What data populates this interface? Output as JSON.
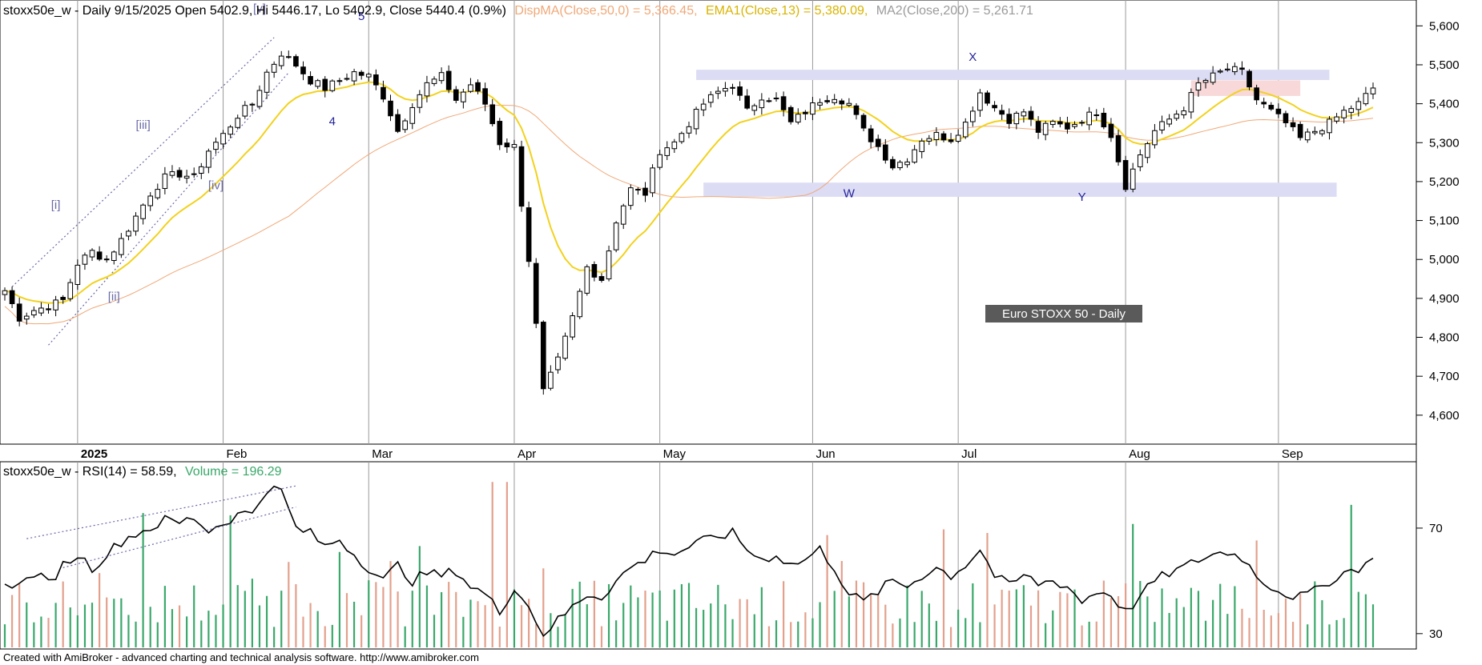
{
  "price_panel": {
    "header": {
      "prefix": "stoxx50e_w - Daily 9/15/2025 Open 5402.9, Hi 5446.17, Lo 5402.9, Close 5440.4 (0.9%)",
      "dispma": "DispMA(Close,50,0) = 5,366.45,",
      "ema": "EMA1(Close,13) = 5,380.09,",
      "ma2": "MA2(Close,200) = 5,261.71"
    },
    "watermark": "Euro STOXX 50 - Daily",
    "footer": "Created with AmiBroker - advanced charting and technical analysis software. http://www.amibroker.com"
  },
  "rsi_panel": {
    "header": {
      "rsi": "stoxx50e_w - RSI(14) = 58.59,",
      "volume": "Volume = 196.29"
    }
  },
  "colors": {
    "ema": "#f2d21e",
    "dispma": "#f0a878",
    "ma2": "#ababab",
    "band": "#dcdcf4",
    "rect": "#f8d8d8",
    "wave": "#23239c",
    "wave_light": "#6a6aa8",
    "vol_up": "#3aa86a",
    "vol_down": "#e3a08c",
    "label_bg": "#5a5a5a"
  },
  "chart_data": [
    {
      "type": "candlestick",
      "title": "Euro STOXX 50 - Daily",
      "ylim": [
        4540,
        5650
      ],
      "yticks": [
        "5,600",
        "5,500",
        "5,400",
        "5,300",
        "5,200",
        "5,100",
        "5,000",
        "4,900",
        "4,800",
        "4,700",
        "4,600"
      ],
      "ytick_values": [
        5600,
        5500,
        5400,
        5300,
        5200,
        5100,
        5000,
        4900,
        4800,
        4700,
        4600
      ],
      "x_labels": [
        {
          "label": "2025",
          "index": 10
        },
        {
          "label": "Feb",
          "index": 30
        },
        {
          "label": "Mar",
          "index": 50
        },
        {
          "label": "Apr",
          "index": 70
        },
        {
          "label": "May",
          "index": 90
        },
        {
          "label": "Jun",
          "index": 111
        },
        {
          "label": "Jul",
          "index": 131
        },
        {
          "label": "Aug",
          "index": 154
        },
        {
          "label": "Sep",
          "index": 175
        }
      ],
      "last_close": 5440.4,
      "anchors": [
        [
          0,
          4920
        ],
        [
          2,
          4850
        ],
        [
          4,
          4870
        ],
        [
          6,
          4880
        ],
        [
          8,
          4895
        ],
        [
          10,
          4990
        ],
        [
          12,
          5020
        ],
        [
          14,
          5000
        ],
        [
          16,
          5050
        ],
        [
          18,
          5110
        ],
        [
          20,
          5170
        ],
        [
          22,
          5210
        ],
        [
          24,
          5220
        ],
        [
          26,
          5210
        ],
        [
          28,
          5280
        ],
        [
          30,
          5320
        ],
        [
          32,
          5370
        ],
        [
          34,
          5400
        ],
        [
          36,
          5480
        ],
        [
          38,
          5530
        ],
        [
          40,
          5500
        ],
        [
          42,
          5460
        ],
        [
          44,
          5440
        ],
        [
          46,
          5460
        ],
        [
          48,
          5480
        ],
        [
          50,
          5470
        ],
        [
          52,
          5420
        ],
        [
          54,
          5330
        ],
        [
          56,
          5400
        ],
        [
          58,
          5450
        ],
        [
          60,
          5470
        ],
        [
          62,
          5410
        ],
        [
          64,
          5450
        ],
        [
          66,
          5400
        ],
        [
          68,
          5300
        ],
        [
          70,
          5290
        ],
        [
          72,
          5000
        ],
        [
          74,
          4660
        ],
        [
          76,
          4740
        ],
        [
          78,
          4850
        ],
        [
          80,
          4980
        ],
        [
          82,
          4950
        ],
        [
          84,
          5100
        ],
        [
          86,
          5180
        ],
        [
          88,
          5170
        ],
        [
          90,
          5280
        ],
        [
          92,
          5300
        ],
        [
          94,
          5350
        ],
        [
          96,
          5400
        ],
        [
          98,
          5430
        ],
        [
          100,
          5450
        ],
        [
          102,
          5380
        ],
        [
          104,
          5420
        ],
        [
          106,
          5410
        ],
        [
          108,
          5350
        ],
        [
          110,
          5380
        ],
        [
          112,
          5410
        ],
        [
          114,
          5420
        ],
        [
          116,
          5400
        ],
        [
          118,
          5330
        ],
        [
          120,
          5290
        ],
        [
          122,
          5240
        ],
        [
          124,
          5260
        ],
        [
          126,
          5310
        ],
        [
          128,
          5320
        ],
        [
          130,
          5310
        ],
        [
          132,
          5350
        ],
        [
          134,
          5430
        ],
        [
          136,
          5390
        ],
        [
          138,
          5360
        ],
        [
          140,
          5380
        ],
        [
          142,
          5330
        ],
        [
          144,
          5350
        ],
        [
          146,
          5340
        ],
        [
          148,
          5360
        ],
        [
          150,
          5380
        ],
        [
          152,
          5320
        ],
        [
          154,
          5190
        ],
        [
          156,
          5270
        ],
        [
          158,
          5330
        ],
        [
          160,
          5360
        ],
        [
          162,
          5390
        ],
        [
          164,
          5450
        ],
        [
          166,
          5470
        ],
        [
          168,
          5490
        ],
        [
          170,
          5480
        ],
        [
          172,
          5410
        ],
        [
          174,
          5380
        ],
        [
          176,
          5350
        ],
        [
          178,
          5310
        ],
        [
          180,
          5330
        ],
        [
          182,
          5350
        ],
        [
          184,
          5380
        ],
        [
          186,
          5400
        ],
        [
          188,
          5440.4
        ]
      ],
      "moving_averages": {
        "EMA1(Close,13)": "ema",
        "DispMA(Close,50,0)": "dispma",
        "MA2(Close,200)": "ma2"
      },
      "wave_labels": [
        {
          "label": "[i]",
          "index": 7,
          "value": 5130
        },
        {
          "label": "[ii]",
          "index": 15,
          "value": 4895
        },
        {
          "label": "[iii]",
          "index": 19,
          "value": 5335
        },
        {
          "label": "[iv]",
          "index": 29,
          "value": 5180
        },
        {
          "label": "[v]",
          "index": 35,
          "value": 5635
        },
        {
          "label": "4",
          "index": 45,
          "value": 5345
        },
        {
          "label": "5",
          "index": 49,
          "value": 5615
        },
        {
          "label": "W",
          "index": 116,
          "value": 5160
        },
        {
          "label": "X",
          "index": 133,
          "value": 5510
        },
        {
          "label": "Y",
          "index": 148,
          "value": 5150
        }
      ],
      "bands": [
        {
          "from": 95,
          "to": 182,
          "low": 5465,
          "high": 5475
        },
        {
          "from": 96,
          "to": 183,
          "low": 5165,
          "high": 5185
        }
      ],
      "zone": {
        "from": 163,
        "to": 178,
        "low": 5420,
        "high": 5460
      }
    },
    {
      "type": "line",
      "title": "RSI(14)",
      "series_name": "RSI(14)",
      "last_value": 58.59,
      "ylim": [
        26,
        90
      ],
      "yticks": [
        "70",
        "30"
      ],
      "ytick_values": [
        70,
        30
      ],
      "anchors": [
        [
          0,
          50
        ],
        [
          2,
          48
        ],
        [
          4,
          53
        ],
        [
          6,
          49
        ],
        [
          8,
          56
        ],
        [
          10,
          60
        ],
        [
          12,
          55
        ],
        [
          14,
          60
        ],
        [
          16,
          65
        ],
        [
          18,
          68
        ],
        [
          20,
          70
        ],
        [
          22,
          73
        ],
        [
          24,
          72
        ],
        [
          26,
          74
        ],
        [
          28,
          69
        ],
        [
          30,
          72
        ],
        [
          32,
          75
        ],
        [
          34,
          76
        ],
        [
          36,
          85
        ],
        [
          38,
          84
        ],
        [
          40,
          70
        ],
        [
          42,
          68
        ],
        [
          44,
          63
        ],
        [
          46,
          66
        ],
        [
          48,
          60
        ],
        [
          50,
          55
        ],
        [
          52,
          50
        ],
        [
          54,
          56
        ],
        [
          56,
          50
        ],
        [
          58,
          53
        ],
        [
          60,
          52
        ],
        [
          62,
          54
        ],
        [
          64,
          48
        ],
        [
          66,
          45
        ],
        [
          68,
          38
        ],
        [
          70,
          48
        ],
        [
          72,
          40
        ],
        [
          74,
          30
        ],
        [
          76,
          35
        ],
        [
          78,
          40
        ],
        [
          80,
          45
        ],
        [
          82,
          44
        ],
        [
          84,
          50
        ],
        [
          86,
          55
        ],
        [
          88,
          58
        ],
        [
          90,
          62
        ],
        [
          92,
          60
        ],
        [
          94,
          63
        ],
        [
          96,
          65
        ],
        [
          98,
          67
        ],
        [
          100,
          68
        ],
        [
          102,
          62
        ],
        [
          104,
          58
        ],
        [
          106,
          60
        ],
        [
          108,
          56
        ],
        [
          110,
          58
        ],
        [
          112,
          62
        ],
        [
          114,
          55
        ],
        [
          116,
          45
        ],
        [
          118,
          42
        ],
        [
          120,
          46
        ],
        [
          122,
          50
        ],
        [
          124,
          48
        ],
        [
          126,
          52
        ],
        [
          128,
          55
        ],
        [
          130,
          52
        ],
        [
          132,
          56
        ],
        [
          134,
          62
        ],
        [
          136,
          52
        ],
        [
          138,
          48
        ],
        [
          140,
          52
        ],
        [
          142,
          49
        ],
        [
          144,
          50
        ],
        [
          146,
          48
        ],
        [
          148,
          42
        ],
        [
          150,
          46
        ],
        [
          152,
          45
        ],
        [
          154,
          38
        ],
        [
          156,
          44
        ],
        [
          158,
          50
        ],
        [
          160,
          53
        ],
        [
          162,
          55
        ],
        [
          164,
          58
        ],
        [
          166,
          60
        ],
        [
          168,
          61
        ],
        [
          170,
          59
        ],
        [
          172,
          52
        ],
        [
          174,
          48
        ],
        [
          176,
          45
        ],
        [
          178,
          44
        ],
        [
          180,
          46
        ],
        [
          182,
          50
        ],
        [
          184,
          53
        ],
        [
          186,
          55
        ],
        [
          188,
          58.59
        ]
      ]
    },
    {
      "type": "bar",
      "title": "Volume",
      "series_name": "Volume",
      "last_value": 196.29
    }
  ]
}
